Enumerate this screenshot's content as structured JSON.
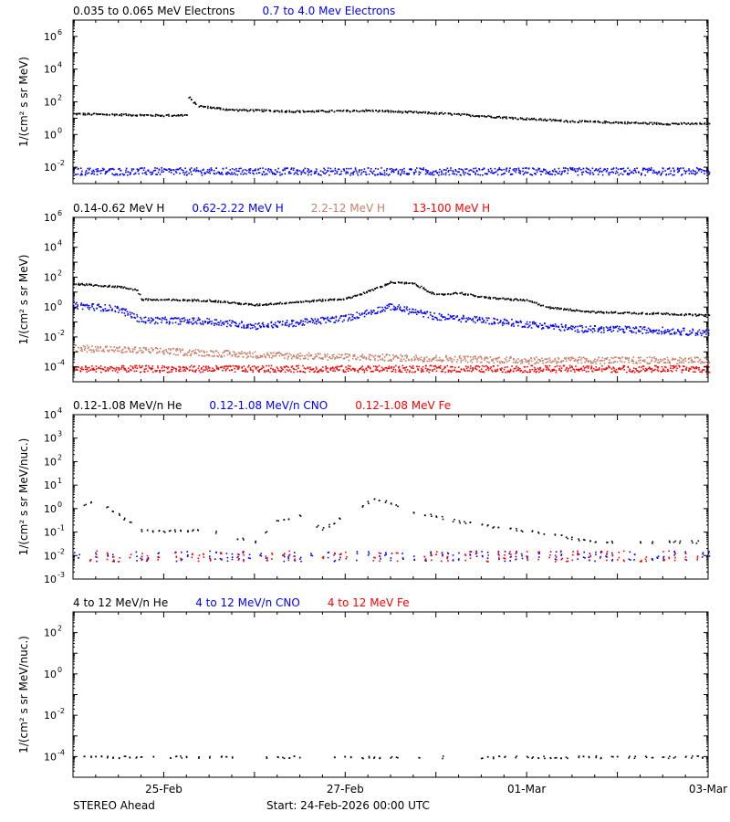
{
  "footer": {
    "left": "STEREO Ahead",
    "start": "Start: 24-Feb-2026 00:00 UTC"
  },
  "x_axis": {
    "range": [
      "2026-02-24",
      "2026-03-03"
    ],
    "ticks": [
      {
        "date": "2026-02-25",
        "label": "25-Feb"
      },
      {
        "date": "2026-02-27",
        "label": "27-Feb"
      },
      {
        "date": "2026-03-01",
        "label": "01-Mar"
      },
      {
        "date": "2026-03-03",
        "label": "03-Mar"
      }
    ]
  },
  "chart_data": [
    {
      "type": "scatter",
      "ylabel": "1/(cm² s sr MeV)",
      "yscale": "log",
      "ylim": [
        0.001,
        10000000
      ],
      "yticks": [
        {
          "value": 0.01,
          "base": "10",
          "exp": "-2"
        },
        {
          "value": 1,
          "base": "10",
          "exp": "0"
        },
        {
          "value": 100,
          "base": "10",
          "exp": "2"
        },
        {
          "value": 10000,
          "base": "10",
          "exp": "4"
        },
        {
          "value": 1000000,
          "base": "10",
          "exp": "6"
        }
      ],
      "series": [
        {
          "name": "0.035 to 0.065 MeV Electrons",
          "color": "#000000",
          "points": [
            [
              "2026-02-24T00:00",
              20
            ],
            [
              "2026-02-24T12:00",
              18
            ],
            [
              "2026-02-25T00:00",
              16
            ],
            [
              "2026-02-25T06:00",
              17
            ],
            [
              "2026-02-25T06:30",
              200
            ],
            [
              "2026-02-25T09:00",
              60
            ],
            [
              "2026-02-25T18:00",
              35
            ],
            [
              "2026-02-26T12:00",
              28
            ],
            [
              "2026-02-27T00:00",
              30
            ],
            [
              "2026-02-27T06:00",
              32
            ],
            [
              "2026-02-28T00:00",
              22
            ],
            [
              "2026-02-28T12:00",
              15
            ],
            [
              "2026-03-01T00:00",
              10
            ],
            [
              "2026-03-01T12:00",
              7
            ],
            [
              "2026-03-02T00:00",
              6
            ],
            [
              "2026-03-02T12:00",
              5
            ],
            [
              "2026-03-03T00:00",
              5
            ]
          ]
        },
        {
          "name": "0.7 to 4.0 Mev Electrons",
          "color": "#0000ff",
          "points": [
            [
              "2026-02-24T00:00",
              0.006
            ],
            [
              "2026-02-25T00:00",
              0.006
            ],
            [
              "2026-02-26T00:00",
              0.006
            ],
            [
              "2026-02-27T00:00",
              0.006
            ],
            [
              "2026-02-28T00:00",
              0.006
            ],
            [
              "2026-03-01T00:00",
              0.006
            ],
            [
              "2026-03-02T00:00",
              0.006
            ],
            [
              "2026-03-03T00:00",
              0.006
            ]
          ]
        }
      ]
    },
    {
      "type": "scatter",
      "ylabel": "1/(cm² s sr MeV)",
      "yscale": "log",
      "ylim": [
        1e-05,
        1000000
      ],
      "yticks": [
        {
          "value": 0.0001,
          "base": "10",
          "exp": "-4"
        },
        {
          "value": 0.01,
          "base": "10",
          "exp": "-2"
        },
        {
          "value": 1,
          "base": "10",
          "exp": "0"
        },
        {
          "value": 100,
          "base": "10",
          "exp": "2"
        },
        {
          "value": 10000,
          "base": "10",
          "exp": "4"
        },
        {
          "value": 1000000,
          "base": "10",
          "exp": "6"
        }
      ],
      "series": [
        {
          "name": "0.14-0.62 MeV H",
          "color": "#000000",
          "points": [
            [
              "2026-02-24T00:00",
              40
            ],
            [
              "2026-02-24T12:00",
              25
            ],
            [
              "2026-02-24T17:00",
              15
            ],
            [
              "2026-02-24T18:00",
              3.5
            ],
            [
              "2026-02-25T12:00",
              3
            ],
            [
              "2026-02-26T00:00",
              1.5
            ],
            [
              "2026-02-26T12:00",
              2.5
            ],
            [
              "2026-02-27T00:00",
              4
            ],
            [
              "2026-02-27T06:00",
              12
            ],
            [
              "2026-02-27T12:00",
              50
            ],
            [
              "2026-02-27T18:00",
              40
            ],
            [
              "2026-02-28T00:00",
              7
            ],
            [
              "2026-02-28T06:00",
              10
            ],
            [
              "2026-02-28T12:00",
              5
            ],
            [
              "2026-03-01T00:00",
              3
            ],
            [
              "2026-03-01T06:00",
              1
            ],
            [
              "2026-03-01T18:00",
              0.5
            ],
            [
              "2026-03-02T12:00",
              0.4
            ],
            [
              "2026-03-03T00:00",
              0.3
            ]
          ]
        },
        {
          "name": "0.62-2.22 MeV H",
          "color": "#0000ff",
          "points": [
            [
              "2026-02-24T00:00",
              1.5
            ],
            [
              "2026-02-24T12:00",
              0.8
            ],
            [
              "2026-02-24T18:00",
              0.15
            ],
            [
              "2026-02-25T12:00",
              0.12
            ],
            [
              "2026-02-26T00:00",
              0.06
            ],
            [
              "2026-02-26T12:00",
              0.1
            ],
            [
              "2026-02-27T00:00",
              0.2
            ],
            [
              "2026-02-27T12:00",
              1.2
            ],
            [
              "2026-02-28T00:00",
              0.25
            ],
            [
              "2026-02-28T12:00",
              0.15
            ],
            [
              "2026-03-01T00:00",
              0.08
            ],
            [
              "2026-03-01T12:00",
              0.04
            ],
            [
              "2026-03-02T12:00",
              0.03
            ],
            [
              "2026-03-03T00:00",
              0.02
            ]
          ]
        },
        {
          "name": "2.2-12 MeV H",
          "color": "#c8806a",
          "points": [
            [
              "2026-02-24T00:00",
              0.002
            ],
            [
              "2026-02-25T00:00",
              0.0012
            ],
            [
              "2026-02-26T00:00",
              0.0007
            ],
            [
              "2026-02-27T00:00",
              0.0005
            ],
            [
              "2026-02-28T00:00",
              0.0004
            ],
            [
              "2026-03-01T00:00",
              0.0003
            ],
            [
              "2026-03-02T00:00",
              0.0003
            ],
            [
              "2026-03-03T00:00",
              0.0003
            ]
          ]
        },
        {
          "name": "13-100 MeV H",
          "color": "#ff0000",
          "points": [
            [
              "2026-02-24T00:00",
              8e-05
            ],
            [
              "2026-02-25T00:00",
              8e-05
            ],
            [
              "2026-02-26T00:00",
              8e-05
            ],
            [
              "2026-02-27T00:00",
              8e-05
            ],
            [
              "2026-02-28T00:00",
              8e-05
            ],
            [
              "2026-03-01T00:00",
              8e-05
            ],
            [
              "2026-03-02T00:00",
              8e-05
            ],
            [
              "2026-03-03T00:00",
              8e-05
            ]
          ]
        }
      ]
    },
    {
      "type": "scatter",
      "ylabel": "1/(cm² s sr MeV/nuc.)",
      "yscale": "log",
      "ylim": [
        0.001,
        10000
      ],
      "yticks": [
        {
          "value": 0.001,
          "base": "10",
          "exp": "-3"
        },
        {
          "value": 0.01,
          "base": "10",
          "exp": "-2"
        },
        {
          "value": 0.1,
          "base": "10",
          "exp": "-1"
        },
        {
          "value": 1,
          "base": "10",
          "exp": "0"
        },
        {
          "value": 10,
          "base": "10",
          "exp": "1"
        },
        {
          "value": 100,
          "base": "10",
          "exp": "2"
        },
        {
          "value": 1000,
          "base": "10",
          "exp": "3"
        },
        {
          "value": 10000,
          "base": "10",
          "exp": "4"
        }
      ],
      "series": [
        {
          "name": "0.12-1.08 MeV/n He",
          "color": "#000000",
          "points": [
            [
              "2026-02-24T00:00",
              1
            ],
            [
              "2026-02-24T06:00",
              2.5
            ],
            [
              "2026-02-24T12:00",
              0.6
            ],
            [
              "2026-02-24T18:00",
              0.12
            ],
            [
              "2026-02-25T12:00",
              0.12
            ],
            [
              "2026-02-26T00:00",
              0.04
            ],
            [
              "2026-02-26T06:00",
              0.3
            ],
            [
              "2026-02-26T12:00",
              0.5
            ],
            [
              "2026-02-26T18:00",
              0.15
            ],
            [
              "2026-02-27T00:00",
              0.5
            ],
            [
              "2026-02-27T06:00",
              2
            ],
            [
              "2026-02-27T08:00",
              3
            ],
            [
              "2026-02-27T18:00",
              0.8
            ],
            [
              "2026-02-28T06:00",
              0.3
            ],
            [
              "2026-02-28T18:00",
              0.15
            ],
            [
              "2026-03-01T00:00",
              0.12
            ],
            [
              "2026-03-01T18:00",
              0.04
            ],
            [
              "2026-03-02T12:00",
              0.04
            ],
            [
              "2026-03-03T00:00",
              0.04
            ]
          ]
        },
        {
          "name": "0.12-1.08 MeV/n CNO",
          "color": "#0000ff",
          "points": [
            [
              "2026-02-24T00:00",
              0.01
            ],
            [
              "2026-02-25T00:00",
              0.01
            ],
            [
              "2026-02-26T00:00",
              0.01
            ],
            [
              "2026-02-27T00:00",
              0.01
            ],
            [
              "2026-02-28T00:00",
              0.01
            ],
            [
              "2026-03-01T00:00",
              0.01
            ],
            [
              "2026-03-02T00:00",
              0.01
            ],
            [
              "2026-03-03T00:00",
              0.01
            ]
          ]
        },
        {
          "name": "0.12-1.08 MeV Fe",
          "color": "#ff0000",
          "points": [
            [
              "2026-02-24T00:00",
              0.01
            ],
            [
              "2026-02-25T00:00",
              0.01
            ],
            [
              "2026-02-26T00:00",
              0.01
            ],
            [
              "2026-02-27T00:00",
              0.01
            ],
            [
              "2026-02-28T00:00",
              0.01
            ],
            [
              "2026-03-01T00:00",
              0.01
            ],
            [
              "2026-03-02T00:00",
              0.01
            ],
            [
              "2026-03-03T00:00",
              0.01
            ]
          ]
        }
      ]
    },
    {
      "type": "scatter",
      "ylabel": "1/(cm² s sr MeV/nuc.)",
      "yscale": "log",
      "ylim": [
        1e-05,
        1000
      ],
      "yticks": [
        {
          "value": 0.0001,
          "base": "10",
          "exp": "-4"
        },
        {
          "value": 0.01,
          "base": "10",
          "exp": "-2"
        },
        {
          "value": 1,
          "base": "10",
          "exp": "0"
        },
        {
          "value": 100,
          "base": "10",
          "exp": "2"
        }
      ],
      "series": [
        {
          "name": "4 to 12 MeV/n He",
          "color": "#000000",
          "points": [
            [
              "2026-02-24T00:00",
              0.0001
            ],
            [
              "2026-02-25T00:00",
              0.0001
            ],
            [
              "2026-02-26T00:00",
              0.0001
            ],
            [
              "2026-02-27T00:00",
              0.0001
            ],
            [
              "2026-02-28T00:00",
              0.0001
            ],
            [
              "2026-03-01T00:00",
              0.0001
            ],
            [
              "2026-03-02T00:00",
              0.0001
            ],
            [
              "2026-03-03T00:00",
              0.0001
            ]
          ]
        },
        {
          "name": "4 to 12 MeV/n CNO",
          "color": "#0000ff",
          "points": []
        },
        {
          "name": "4 to 12 MeV Fe",
          "color": "#ff0000",
          "points": []
        }
      ]
    }
  ]
}
